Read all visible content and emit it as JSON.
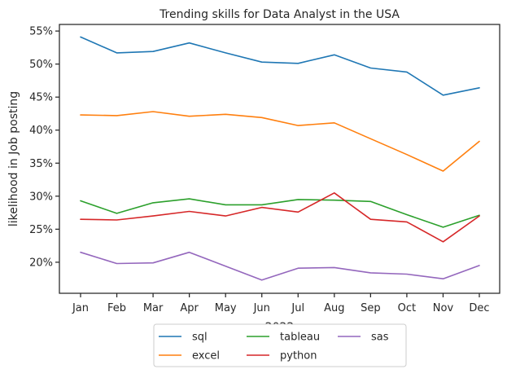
{
  "chart_data": {
    "type": "line",
    "title": "Trending skills for Data Analyst in the USA",
    "xlabel": "2022",
    "ylabel": "likelihood in Job posting",
    "categories": [
      "Jan",
      "Feb",
      "Mar",
      "Apr",
      "May",
      "Jun",
      "Jul",
      "Aug",
      "Sep",
      "Oct",
      "Nov",
      "Dec"
    ],
    "ylim": [
      15.3,
      56.0
    ],
    "yticks": [
      20,
      25,
      30,
      35,
      40,
      45,
      50,
      55
    ],
    "ytick_labels": [
      "20%",
      "25%",
      "30%",
      "35%",
      "40%",
      "45%",
      "50%",
      "55%"
    ],
    "grid": false,
    "legend_position": "bottom-center",
    "series": [
      {
        "name": "sql",
        "color": "#1f77b4",
        "values": [
          54.1,
          51.7,
          51.9,
          53.2,
          51.7,
          50.3,
          50.1,
          51.4,
          49.4,
          48.8,
          45.3,
          46.4
        ]
      },
      {
        "name": "excel",
        "color": "#ff7f0e",
        "values": [
          42.3,
          42.2,
          42.8,
          42.1,
          42.4,
          41.9,
          40.7,
          41.1,
          38.7,
          36.3,
          33.8,
          38.3
        ]
      },
      {
        "name": "tableau",
        "color": "#2ca02c",
        "values": [
          29.3,
          27.4,
          29.0,
          29.6,
          28.7,
          28.7,
          29.5,
          29.4,
          29.2,
          27.2,
          25.3,
          27.1
        ]
      },
      {
        "name": "python",
        "color": "#d62728",
        "values": [
          26.5,
          26.4,
          27.0,
          27.7,
          27.0,
          28.3,
          27.6,
          30.5,
          26.5,
          26.1,
          23.1,
          27.0
        ]
      },
      {
        "name": "sas",
        "color": "#9467bd",
        "values": [
          21.5,
          19.8,
          19.9,
          21.5,
          19.4,
          17.3,
          19.1,
          19.2,
          18.4,
          18.2,
          17.5,
          19.5
        ]
      }
    ]
  }
}
